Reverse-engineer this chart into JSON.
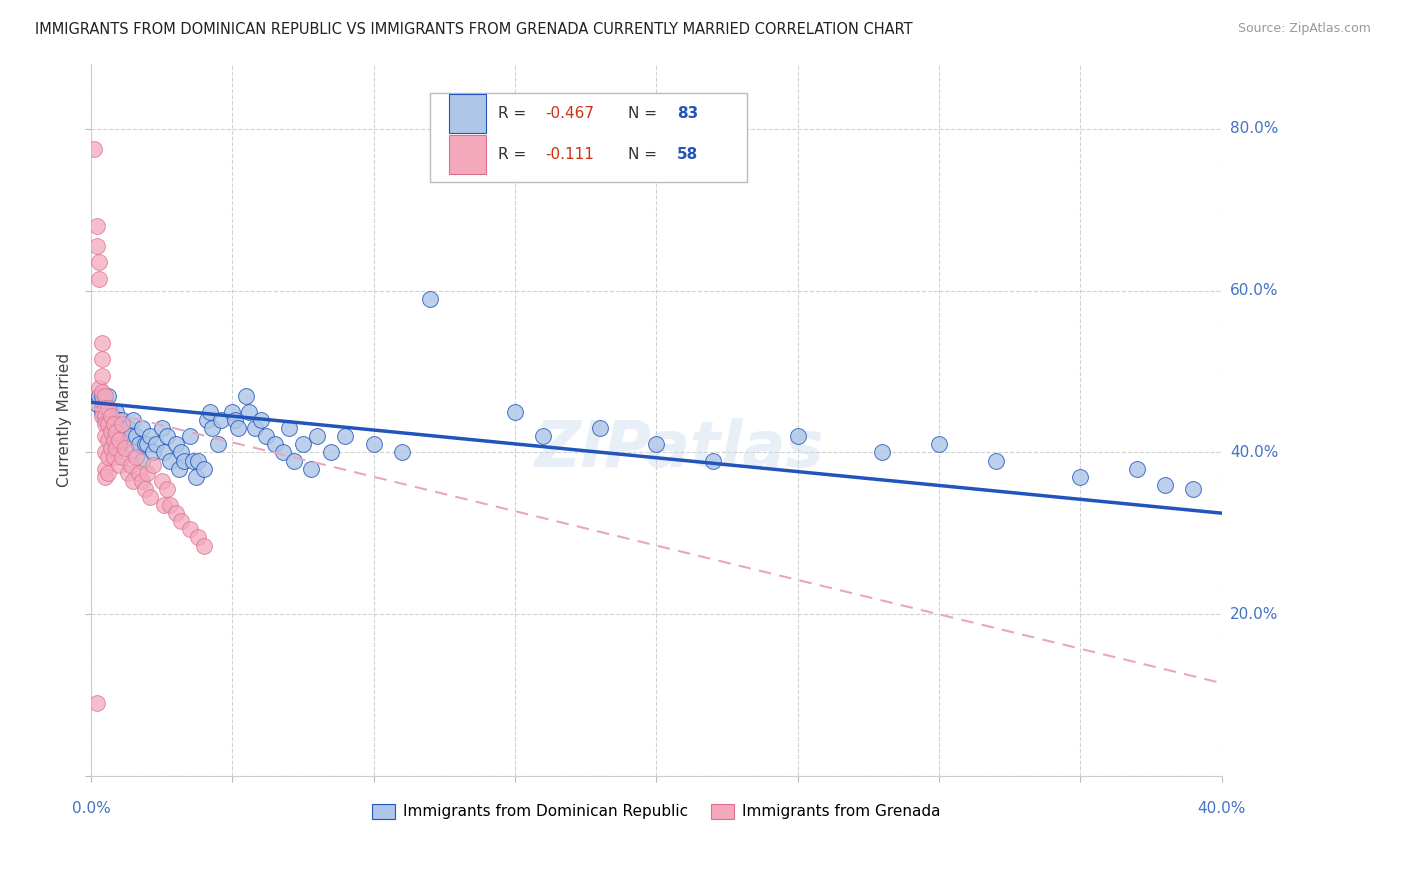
{
  "title": "IMMIGRANTS FROM DOMINICAN REPUBLIC VS IMMIGRANTS FROM GRENADA CURRENTLY MARRIED CORRELATION CHART",
  "source": "Source: ZipAtlas.com",
  "ylabel": "Currently Married",
  "legend_label1": "Immigrants from Dominican Republic",
  "legend_label2": "Immigrants from Grenada",
  "r1": "-0.467",
  "n1": "83",
  "r2": "-0.111",
  "n2": "58",
  "color_blue": "#aec6e8",
  "color_pink": "#f4a8bc",
  "line_blue": "#2255bb",
  "line_pink": "#f0b0c0",
  "blue_dots": [
    [
      0.002,
      0.46
    ],
    [
      0.003,
      0.47
    ],
    [
      0.004,
      0.47
    ],
    [
      0.004,
      0.45
    ],
    [
      0.005,
      0.46
    ],
    [
      0.005,
      0.44
    ],
    [
      0.006,
      0.47
    ],
    [
      0.006,
      0.44
    ],
    [
      0.007,
      0.45
    ],
    [
      0.007,
      0.43
    ],
    [
      0.008,
      0.44
    ],
    [
      0.008,
      0.42
    ],
    [
      0.009,
      0.45
    ],
    [
      0.009,
      0.43
    ],
    [
      0.01,
      0.44
    ],
    [
      0.01,
      0.41
    ],
    [
      0.011,
      0.44
    ],
    [
      0.011,
      0.42
    ],
    [
      0.012,
      0.43
    ],
    [
      0.013,
      0.43
    ],
    [
      0.014,
      0.42
    ],
    [
      0.015,
      0.44
    ],
    [
      0.015,
      0.4
    ],
    [
      0.016,
      0.42
    ],
    [
      0.017,
      0.41
    ],
    [
      0.018,
      0.43
    ],
    [
      0.018,
      0.39
    ],
    [
      0.019,
      0.41
    ],
    [
      0.02,
      0.41
    ],
    [
      0.021,
      0.42
    ],
    [
      0.022,
      0.4
    ],
    [
      0.023,
      0.41
    ],
    [
      0.025,
      0.43
    ],
    [
      0.026,
      0.4
    ],
    [
      0.027,
      0.42
    ],
    [
      0.028,
      0.39
    ],
    [
      0.03,
      0.41
    ],
    [
      0.031,
      0.38
    ],
    [
      0.032,
      0.4
    ],
    [
      0.033,
      0.39
    ],
    [
      0.035,
      0.42
    ],
    [
      0.036,
      0.39
    ],
    [
      0.037,
      0.37
    ],
    [
      0.038,
      0.39
    ],
    [
      0.04,
      0.38
    ],
    [
      0.041,
      0.44
    ],
    [
      0.042,
      0.45
    ],
    [
      0.043,
      0.43
    ],
    [
      0.045,
      0.41
    ],
    [
      0.046,
      0.44
    ],
    [
      0.05,
      0.45
    ],
    [
      0.051,
      0.44
    ],
    [
      0.052,
      0.43
    ],
    [
      0.055,
      0.47
    ],
    [
      0.056,
      0.45
    ],
    [
      0.058,
      0.43
    ],
    [
      0.06,
      0.44
    ],
    [
      0.062,
      0.42
    ],
    [
      0.065,
      0.41
    ],
    [
      0.068,
      0.4
    ],
    [
      0.07,
      0.43
    ],
    [
      0.072,
      0.39
    ],
    [
      0.075,
      0.41
    ],
    [
      0.078,
      0.38
    ],
    [
      0.08,
      0.42
    ],
    [
      0.085,
      0.4
    ],
    [
      0.09,
      0.42
    ],
    [
      0.1,
      0.41
    ],
    [
      0.11,
      0.4
    ],
    [
      0.12,
      0.59
    ],
    [
      0.15,
      0.45
    ],
    [
      0.16,
      0.42
    ],
    [
      0.18,
      0.43
    ],
    [
      0.2,
      0.41
    ],
    [
      0.22,
      0.39
    ],
    [
      0.25,
      0.42
    ],
    [
      0.28,
      0.4
    ],
    [
      0.3,
      0.41
    ],
    [
      0.32,
      0.39
    ],
    [
      0.35,
      0.37
    ],
    [
      0.37,
      0.38
    ],
    [
      0.38,
      0.36
    ],
    [
      0.39,
      0.355
    ]
  ],
  "pink_dots": [
    [
      0.001,
      0.775
    ],
    [
      0.002,
      0.68
    ],
    [
      0.002,
      0.655
    ],
    [
      0.002,
      0.09
    ],
    [
      0.003,
      0.635
    ],
    [
      0.003,
      0.615
    ],
    [
      0.003,
      0.48
    ],
    [
      0.004,
      0.535
    ],
    [
      0.004,
      0.515
    ],
    [
      0.004,
      0.495
    ],
    [
      0.004,
      0.475
    ],
    [
      0.004,
      0.455
    ],
    [
      0.004,
      0.445
    ],
    [
      0.005,
      0.47
    ],
    [
      0.005,
      0.455
    ],
    [
      0.005,
      0.445
    ],
    [
      0.005,
      0.435
    ],
    [
      0.005,
      0.42
    ],
    [
      0.005,
      0.4
    ],
    [
      0.005,
      0.38
    ],
    [
      0.005,
      0.37
    ],
    [
      0.006,
      0.455
    ],
    [
      0.006,
      0.435
    ],
    [
      0.006,
      0.415
    ],
    [
      0.006,
      0.395
    ],
    [
      0.006,
      0.375
    ],
    [
      0.007,
      0.445
    ],
    [
      0.007,
      0.425
    ],
    [
      0.007,
      0.405
    ],
    [
      0.008,
      0.435
    ],
    [
      0.008,
      0.415
    ],
    [
      0.008,
      0.395
    ],
    [
      0.009,
      0.425
    ],
    [
      0.009,
      0.405
    ],
    [
      0.01,
      0.415
    ],
    [
      0.01,
      0.385
    ],
    [
      0.011,
      0.435
    ],
    [
      0.011,
      0.395
    ],
    [
      0.012,
      0.405
    ],
    [
      0.013,
      0.375
    ],
    [
      0.014,
      0.385
    ],
    [
      0.015,
      0.365
    ],
    [
      0.016,
      0.395
    ],
    [
      0.017,
      0.375
    ],
    [
      0.018,
      0.365
    ],
    [
      0.019,
      0.355
    ],
    [
      0.02,
      0.375
    ],
    [
      0.021,
      0.345
    ],
    [
      0.022,
      0.385
    ],
    [
      0.025,
      0.365
    ],
    [
      0.026,
      0.335
    ],
    [
      0.027,
      0.355
    ],
    [
      0.028,
      0.335
    ],
    [
      0.03,
      0.325
    ],
    [
      0.032,
      0.315
    ],
    [
      0.035,
      0.305
    ],
    [
      0.038,
      0.295
    ],
    [
      0.04,
      0.285
    ]
  ],
  "xlim": [
    0.0,
    0.4
  ],
  "ylim": [
    0.0,
    0.88
  ],
  "xticks": [
    0.0,
    0.05,
    0.1,
    0.15,
    0.2,
    0.25,
    0.3,
    0.35,
    0.4
  ],
  "yticks": [
    0.0,
    0.2,
    0.4,
    0.6,
    0.8
  ],
  "yaxis_right_labels": {
    "0.2": "20.0%",
    "0.4": "40.0%",
    "0.6": "60.0%",
    "0.8": "80.0%"
  },
  "blue_line_x": [
    0.0,
    0.4
  ],
  "blue_line_y": [
    0.462,
    0.325
  ],
  "pink_line_x": [
    0.0,
    0.4
  ],
  "pink_line_y": [
    0.455,
    0.115
  ],
  "grid_color": "#cccccc",
  "background_color": "#ffffff"
}
